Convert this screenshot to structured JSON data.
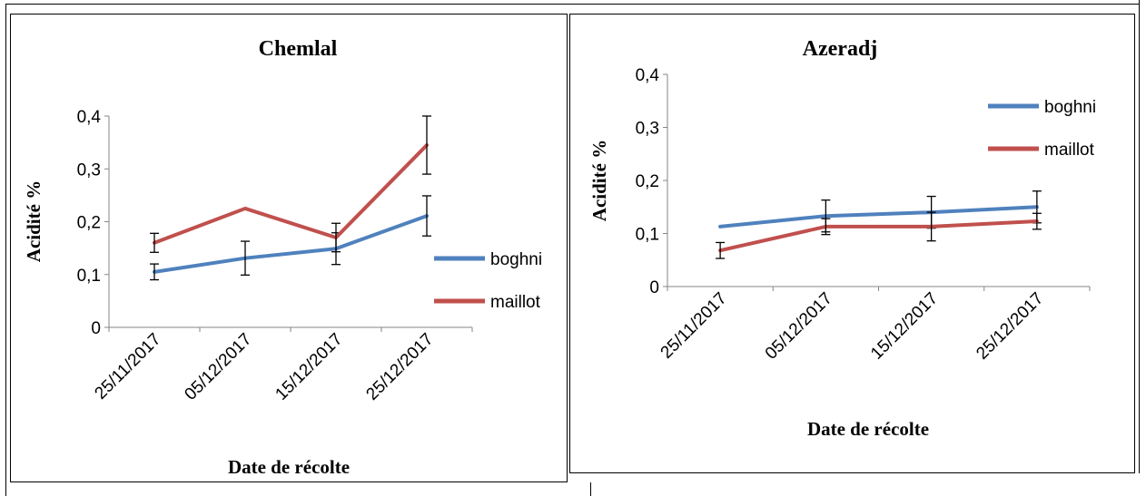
{
  "chart_data": [
    {
      "type": "line",
      "title": "Chemlal",
      "xlabel": "Date de récolte",
      "ylabel": "Acidité %",
      "categories": [
        "25/11/2017",
        "05/12/2017",
        "15/12/2017",
        "25/12/2017"
      ],
      "y_ticks": [
        "0",
        "0,1",
        "0,2",
        "0,3",
        "0,4"
      ],
      "ylim": [
        0,
        0.4
      ],
      "grid": false,
      "legend": "right",
      "series": [
        {
          "name": "boghni",
          "values": [
            0.105,
            0.131,
            0.149,
            0.211
          ],
          "errors": [
            0.015,
            0.032,
            0.03,
            0.038
          ],
          "color": "#4F81BD"
        },
        {
          "name": "maillot",
          "values": [
            0.16,
            0.225,
            0.17,
            0.345
          ],
          "errors": [
            0.018,
            0,
            0.027,
            0.055
          ],
          "color": "#C0504D"
        }
      ]
    },
    {
      "type": "line",
      "title": "Azeradj",
      "xlabel": "Date de récolte",
      "ylabel": "Acidité %",
      "categories": [
        "25/11/2017",
        "05/12/2017",
        "15/12/2017",
        "25/12/2017"
      ],
      "y_ticks": [
        "0",
        "0,1",
        "0,2",
        "0,3",
        "0,4"
      ],
      "ylim": [
        0,
        0.4
      ],
      "grid": false,
      "legend": "top-right",
      "series": [
        {
          "name": "boghni",
          "values": [
            0.113,
            0.133,
            0.14,
            0.15
          ],
          "errors": [
            0,
            0.03,
            0.03,
            0.03
          ],
          "color": "#4F81BD"
        },
        {
          "name": "maillot",
          "values": [
            0.068,
            0.113,
            0.113,
            0.123
          ],
          "errors": [
            0.015,
            0.015,
            0.027,
            0.015
          ],
          "color": "#C0504D"
        }
      ]
    }
  ]
}
